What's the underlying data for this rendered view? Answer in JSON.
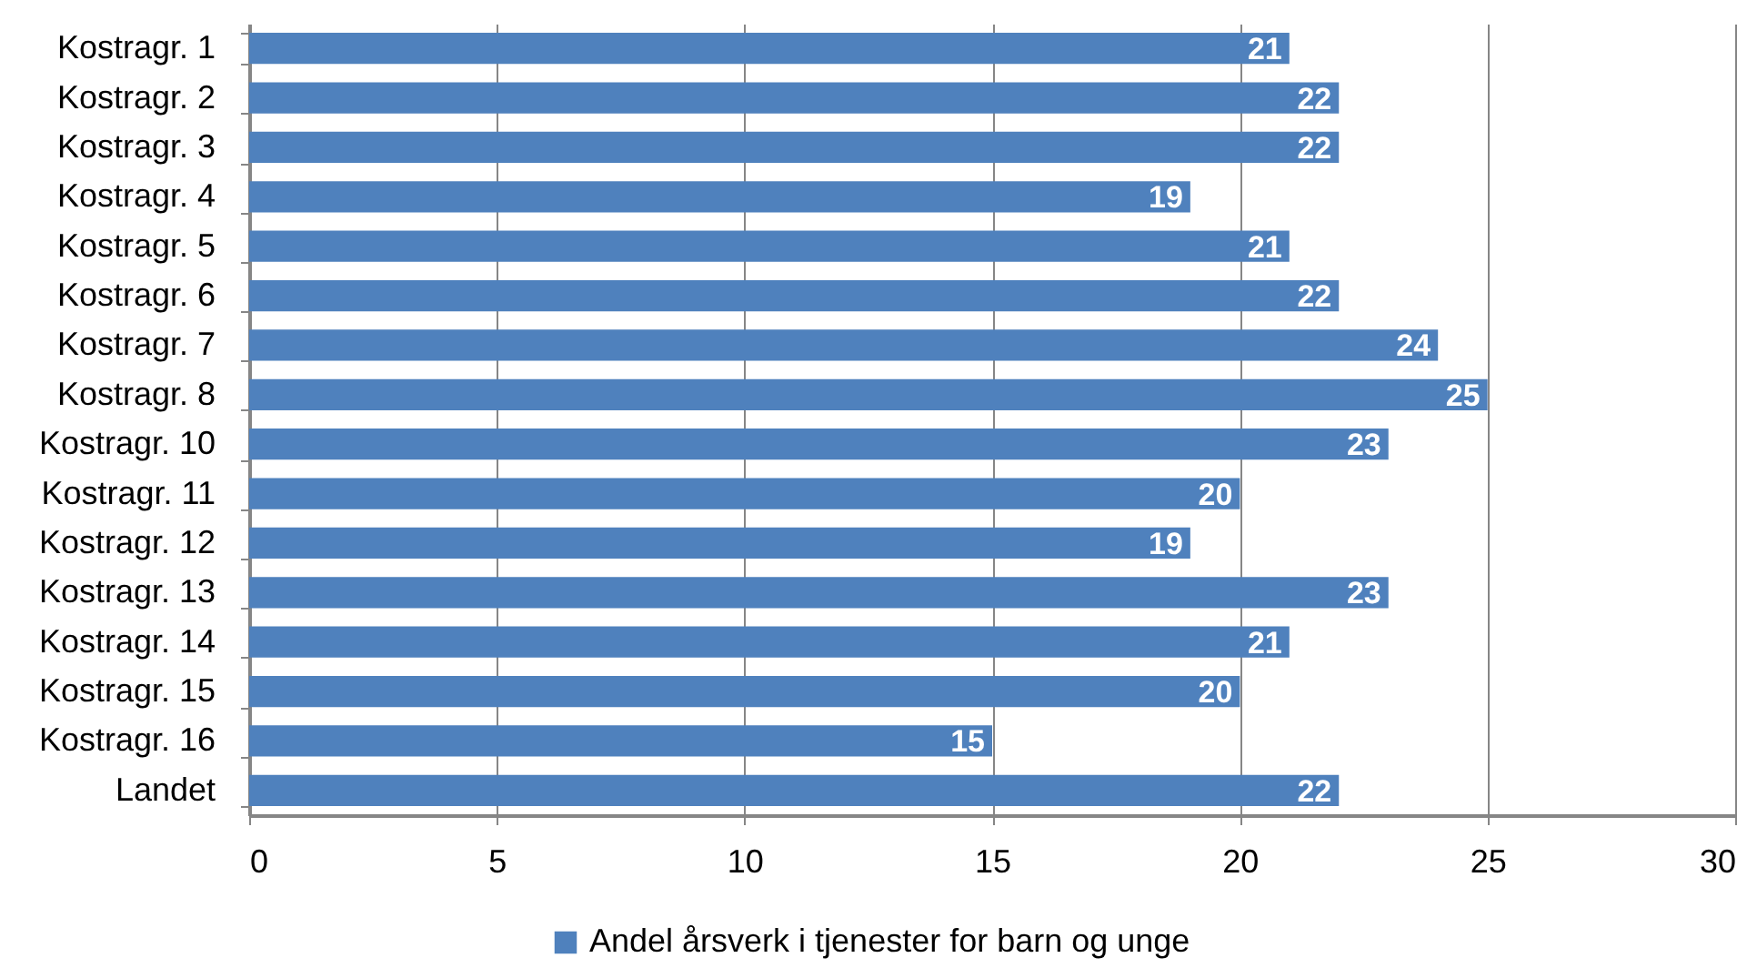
{
  "chart_data": {
    "type": "bar",
    "orientation": "horizontal",
    "categories": [
      "Kostragr. 1",
      "Kostragr. 2",
      "Kostragr. 3",
      "Kostragr. 4",
      "Kostragr. 5",
      "Kostragr. 6",
      "Kostragr. 7",
      "Kostragr. 8",
      "Kostragr. 10",
      "Kostragr. 11",
      "Kostragr. 12",
      "Kostragr. 13",
      "Kostragr. 14",
      "Kostragr. 15",
      "Kostragr. 16",
      "Landet"
    ],
    "series": [
      {
        "name": "Andel årsverk i tjenester for barn og unge",
        "color": "#4f81bd",
        "values": [
          21,
          22,
          22,
          19,
          21,
          22,
          24,
          25,
          23,
          20,
          19,
          23,
          21,
          20,
          15,
          22
        ]
      }
    ],
    "xlim": [
      0,
      30
    ],
    "xticks": [
      0,
      5,
      10,
      15,
      20,
      25,
      30
    ],
    "grid": "x",
    "legend": "bottom",
    "data_labels": true
  }
}
